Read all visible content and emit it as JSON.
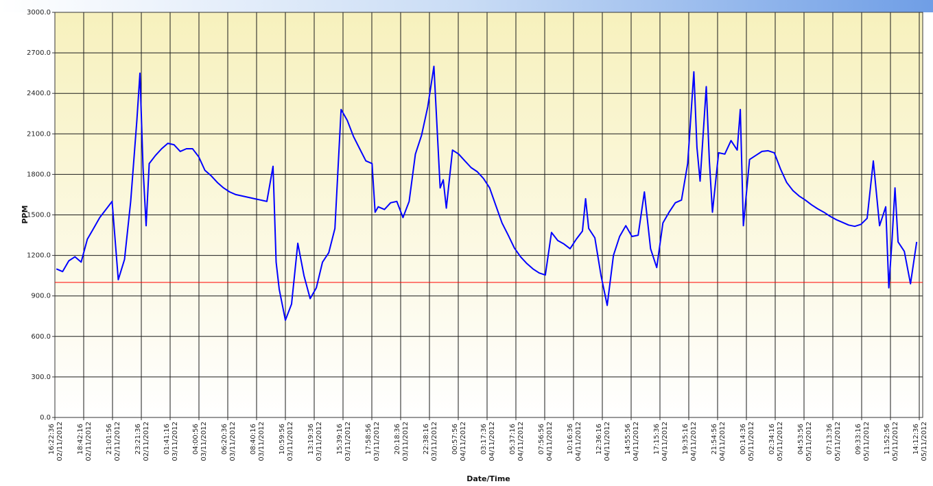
{
  "chart_data": {
    "type": "line",
    "y_label": "PPM",
    "x_label": "Date/Time",
    "xlim": [
      "2012-11-02T16:22:36",
      "2012-11-05T14:29:16"
    ],
    "ylim": [
      0,
      3000
    ],
    "yticks": [
      {
        "value": 0,
        "label": "0.0"
      },
      {
        "value": 300,
        "label": "300.0"
      },
      {
        "value": 600,
        "label": "600.0"
      },
      {
        "value": 900,
        "label": "900.0"
      },
      {
        "value": 1200,
        "label": "1200.0"
      },
      {
        "value": 1500,
        "label": "1500.0"
      },
      {
        "value": 1800,
        "label": "1800.0"
      },
      {
        "value": 2100,
        "label": "2100.0"
      },
      {
        "value": 2400,
        "label": "2400.0"
      },
      {
        "value": 2700,
        "label": "2700.0"
      },
      {
        "value": 3000,
        "label": "3000.0"
      }
    ],
    "xticks": [
      {
        "value": "2012-11-02T16:22:36",
        "label": "16:22:36 02/11/2012"
      },
      {
        "value": "2012-11-02T18:42:16",
        "label": "18:42:16 02/11/2012"
      },
      {
        "value": "2012-11-02T21:01:56",
        "label": "21:01:56 02/11/2012"
      },
      {
        "value": "2012-11-02T23:21:36",
        "label": "23:21:36 02/11/2012"
      },
      {
        "value": "2012-11-03T01:41:16",
        "label": "01:41:16 03/11/2012"
      },
      {
        "value": "2012-11-03T04:00:56",
        "label": "04:00:56 03/11/2012"
      },
      {
        "value": "2012-11-03T06:20:36",
        "label": "06:20:36 03/11/2012"
      },
      {
        "value": "2012-11-03T08:40:16",
        "label": "08:40:16 03/11/2012"
      },
      {
        "value": "2012-11-03T10:59:56",
        "label": "10:59:56 03/11/2012"
      },
      {
        "value": "2012-11-03T13:19:36",
        "label": "13:19:36 03/11/2012"
      },
      {
        "value": "2012-11-03T15:39:16",
        "label": "15:39:16 03/11/2012"
      },
      {
        "value": "2012-11-03T17:58:56",
        "label": "17:58:56 03/11/2012"
      },
      {
        "value": "2012-11-03T20:18:36",
        "label": "20:18:36 03/11/2012"
      },
      {
        "value": "2012-11-03T22:38:16",
        "label": "22:38:16 03/11/2012"
      },
      {
        "value": "2012-11-04T00:57:56",
        "label": "00:57:56 04/11/2012"
      },
      {
        "value": "2012-11-04T03:17:36",
        "label": "03:17:36 04/11/2012"
      },
      {
        "value": "2012-11-04T05:37:16",
        "label": "05:37:16 04/11/2012"
      },
      {
        "value": "2012-11-04T07:56:56",
        "label": "07:56:56 04/11/2012"
      },
      {
        "value": "2012-11-04T10:16:36",
        "label": "10:16:36 04/11/2012"
      },
      {
        "value": "2012-11-04T12:36:16",
        "label": "12:36:16 04/11/2012"
      },
      {
        "value": "2012-11-04T14:55:56",
        "label": "14:55:56 04/11/2012"
      },
      {
        "value": "2012-11-04T17:15:36",
        "label": "17:15:36 04/11/2012"
      },
      {
        "value": "2012-11-04T19:35:16",
        "label": "19:35:16 04/11/2012"
      },
      {
        "value": "2012-11-04T21:54:56",
        "label": "21:54:56 04/11/2012"
      },
      {
        "value": "2012-11-05T00:14:36",
        "label": "00:14:36 05/11/2012"
      },
      {
        "value": "2012-11-05T02:34:16",
        "label": "02:34:16 05/11/2012"
      },
      {
        "value": "2012-11-05T04:53:56",
        "label": "04:53:56 05/11/2012"
      },
      {
        "value": "2012-11-05T07:13:36",
        "label": "07:13:36 05/11/2012"
      },
      {
        "value": "2012-11-05T09:33:16",
        "label": "09:33:16 05/11/2012"
      },
      {
        "value": "2012-11-05T11:52:56",
        "label": "11:52:56 05/11/2012"
      },
      {
        "value": "2012-11-05T14:12:36",
        "label": "14:12:36 05/11/2012"
      }
    ],
    "grid": true,
    "reference_line": {
      "value": 1000,
      "color": "#ff0000"
    },
    "x": [
      "2012-11-02T16:30",
      "2012-11-02T17:00",
      "2012-11-02T17:30",
      "2012-11-02T18:00",
      "2012-11-02T18:30",
      "2012-11-02T19:00",
      "2012-11-02T19:30",
      "2012-11-02T20:00",
      "2012-11-02T20:30",
      "2012-11-02T21:00",
      "2012-11-02T21:30",
      "2012-11-02T22:00",
      "2012-11-02T22:30",
      "2012-11-02T23:00",
      "2012-11-02T23:15",
      "2012-11-02T23:30",
      "2012-11-02T23:45",
      "2012-11-03T00:00",
      "2012-11-03T00:30",
      "2012-11-03T01:00",
      "2012-11-03T01:30",
      "2012-11-03T02:00",
      "2012-11-03T02:30",
      "2012-11-03T03:00",
      "2012-11-03T03:30",
      "2012-11-03T04:00",
      "2012-11-03T04:30",
      "2012-11-03T05:00",
      "2012-11-03T05:30",
      "2012-11-03T06:00",
      "2012-11-03T06:30",
      "2012-11-03T07:00",
      "2012-11-03T07:30",
      "2012-11-03T08:00",
      "2012-11-03T08:30",
      "2012-11-03T09:00",
      "2012-11-03T09:30",
      "2012-11-03T10:00",
      "2012-11-03T10:15",
      "2012-11-03T10:30",
      "2012-11-03T11:00",
      "2012-11-03T11:30",
      "2012-11-03T12:00",
      "2012-11-03T12:30",
      "2012-11-03T13:00",
      "2012-11-03T13:30",
      "2012-11-03T14:00",
      "2012-11-03T14:30",
      "2012-11-03T15:00",
      "2012-11-03T15:30",
      "2012-11-03T16:00",
      "2012-11-03T16:30",
      "2012-11-03T17:00",
      "2012-11-03T17:30",
      "2012-11-03T18:00",
      "2012-11-03T18:15",
      "2012-11-03T18:30",
      "2012-11-03T19:00",
      "2012-11-03T19:30",
      "2012-11-03T20:00",
      "2012-11-03T20:30",
      "2012-11-03T21:00",
      "2012-11-03T21:30",
      "2012-11-03T22:00",
      "2012-11-03T22:30",
      "2012-11-03T23:00",
      "2012-11-03T23:30",
      "2012-11-03T23:45",
      "2012-11-04T00:00",
      "2012-11-04T00:30",
      "2012-11-04T01:00",
      "2012-11-04T01:30",
      "2012-11-04T02:00",
      "2012-11-04T02:30",
      "2012-11-04T03:00",
      "2012-11-04T03:30",
      "2012-11-04T04:00",
      "2012-11-04T04:30",
      "2012-11-04T05:00",
      "2012-11-04T05:30",
      "2012-11-04T06:00",
      "2012-11-04T06:30",
      "2012-11-04T07:00",
      "2012-11-04T07:30",
      "2012-11-04T08:00",
      "2012-11-04T08:30",
      "2012-11-04T09:00",
      "2012-11-04T09:30",
      "2012-11-04T10:00",
      "2012-11-04T10:30",
      "2012-11-04T11:00",
      "2012-11-04T11:15",
      "2012-11-04T11:30",
      "2012-11-04T12:00",
      "2012-11-04T12:30",
      "2012-11-04T13:00",
      "2012-11-04T13:30",
      "2012-11-04T14:00",
      "2012-11-04T14:30",
      "2012-11-04T15:00",
      "2012-11-04T15:30",
      "2012-11-04T16:00",
      "2012-11-04T16:30",
      "2012-11-04T17:00",
      "2012-11-04T17:30",
      "2012-11-04T18:00",
      "2012-11-04T18:30",
      "2012-11-04T19:00",
      "2012-11-04T19:30",
      "2012-11-04T20:00",
      "2012-11-04T20:15",
      "2012-11-04T20:30",
      "2012-11-04T21:00",
      "2012-11-04T21:15",
      "2012-11-04T21:30",
      "2012-11-04T22:00",
      "2012-11-04T22:30",
      "2012-11-04T23:00",
      "2012-11-04T23:30",
      "2012-11-04T23:45",
      "2012-11-05T00:00",
      "2012-11-05T00:30",
      "2012-11-05T01:00",
      "2012-11-05T01:30",
      "2012-11-05T02:00",
      "2012-11-05T02:30",
      "2012-11-05T03:00",
      "2012-11-05T03:30",
      "2012-11-05T04:00",
      "2012-11-05T04:30",
      "2012-11-05T05:00",
      "2012-11-05T05:30",
      "2012-11-05T06:00",
      "2012-11-05T06:30",
      "2012-11-05T07:00",
      "2012-11-05T07:30",
      "2012-11-05T08:00",
      "2012-11-05T08:30",
      "2012-11-05T09:00",
      "2012-11-05T09:30",
      "2012-11-05T10:00",
      "2012-11-05T10:30",
      "2012-11-05T11:00",
      "2012-11-05T11:30",
      "2012-11-05T11:45",
      "2012-11-05T12:00",
      "2012-11-05T12:15",
      "2012-11-05T12:30",
      "2012-11-05T13:00",
      "2012-11-05T13:30",
      "2012-11-05T14:00"
    ],
    "series": [
      {
        "color": "#0000ff",
        "values": [
          1100,
          1080,
          1160,
          1190,
          1150,
          1320,
          1400,
          1480,
          1540,
          1600,
          1020,
          1170,
          1600,
          2200,
          2550,
          1850,
          1420,
          1880,
          1940,
          1990,
          2030,
          2020,
          1970,
          1990,
          1990,
          1930,
          1830,
          1790,
          1740,
          1700,
          1670,
          1650,
          1640,
          1630,
          1620,
          1610,
          1600,
          1860,
          1150,
          950,
          720,
          840,
          1290,
          1050,
          880,
          960,
          1150,
          1220,
          1400,
          2280,
          2200,
          2080,
          1990,
          1900,
          1880,
          1520,
          1560,
          1540,
          1590,
          1600,
          1480,
          1600,
          1950,
          2090,
          2300,
          2600,
          1700,
          1760,
          1550,
          1980,
          1950,
          1900,
          1850,
          1820,
          1770,
          1700,
          1570,
          1440,
          1350,
          1255,
          1190,
          1140,
          1100,
          1070,
          1055,
          1370,
          1310,
          1285,
          1250,
          1320,
          1380,
          1620,
          1400,
          1330,
          1050,
          830,
          1200,
          1340,
          1420,
          1340,
          1350,
          1670,
          1250,
          1110,
          1440,
          1520,
          1590,
          1610,
          1880,
          2560,
          2000,
          1750,
          2450,
          1900,
          1520,
          1960,
          1950,
          2050,
          1980,
          2280,
          1420,
          1910,
          1940,
          1970,
          1975,
          1960,
          1840,
          1740,
          1680,
          1640,
          1610,
          1575,
          1545,
          1520,
          1490,
          1465,
          1445,
          1425,
          1415,
          1430,
          1475,
          1900,
          1420,
          1560,
          960,
          1300,
          1700,
          1300,
          1230,
          990,
          1300
        ]
      }
    ]
  }
}
